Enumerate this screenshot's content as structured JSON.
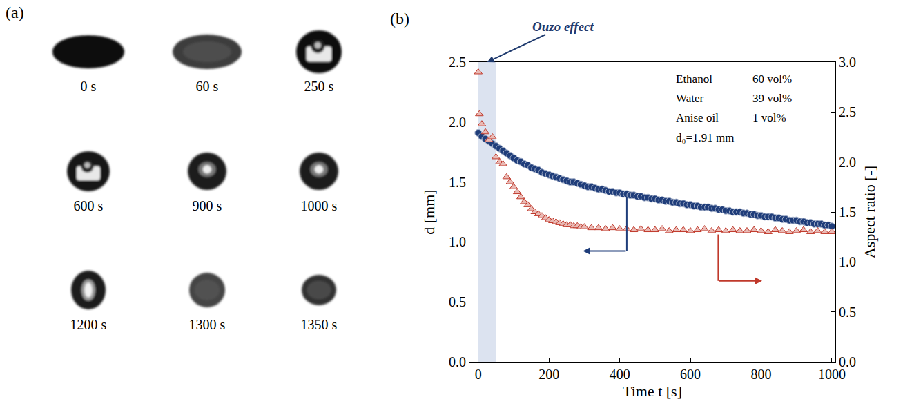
{
  "chart_data": {
    "type": "scatter",
    "panel": "(b)",
    "x_label": "Time t [s]",
    "y_label": "d [mm]",
    "y2_label": "Aspect ratio [-]",
    "xlim": [
      -25,
      1010
    ],
    "xticks": [
      0,
      200,
      400,
      600,
      800,
      1000
    ],
    "ylim": [
      0,
      2.5
    ],
    "yticks": [
      {
        "value": 0,
        "label": "0.0"
      },
      0.5,
      {
        "value": 1,
        "label": "1.0"
      },
      1.5,
      {
        "value": 2,
        "label": "2.0"
      },
      2.5
    ],
    "y2lim": [
      0,
      3
    ],
    "y2ticks": [
      {
        "value": 0,
        "label": "0.0"
      },
      0.5,
      {
        "value": 1,
        "label": "1.0"
      },
      1.5,
      {
        "value": 2,
        "label": "2.0"
      },
      2.5,
      {
        "value": 3,
        "label": "3.0"
      }
    ],
    "grid": false,
    "highlight": {
      "label": "Ouzo effect",
      "x": [
        0,
        50
      ]
    },
    "composition": [
      [
        "Ethanol",
        "60 vol%"
      ],
      [
        "Water",
        "39 vol%"
      ],
      [
        "Anise oil",
        "1 vol%"
      ]
    ],
    "note": "d₀=1.91 mm",
    "series": [
      {
        "color": "#1f3d7a",
        "marker": "circle",
        "x": [
          0,
          10,
          20,
          30,
          40,
          50,
          60,
          70,
          80,
          90,
          100,
          110,
          120,
          130,
          140,
          150,
          160,
          170,
          180,
          190,
          200,
          210,
          220,
          230,
          240,
          250,
          260,
          270,
          280,
          290,
          300,
          310,
          320,
          330,
          340,
          350,
          360,
          370,
          380,
          390,
          400,
          410,
          420,
          430,
          440,
          450,
          460,
          470,
          480,
          490,
          500,
          510,
          520,
          530,
          540,
          550,
          560,
          570,
          580,
          590,
          600,
          610,
          620,
          630,
          640,
          650,
          660,
          670,
          680,
          690,
          700,
          710,
          720,
          730,
          740,
          750,
          760,
          770,
          780,
          790,
          800,
          810,
          820,
          830,
          840,
          850,
          860,
          870,
          880,
          890,
          900,
          910,
          920,
          930,
          940,
          950,
          960,
          970,
          980,
          990,
          1000
        ],
        "values": [
          1.91,
          1.88,
          1.86,
          1.84,
          1.82,
          1.8,
          1.78,
          1.76,
          1.74,
          1.72,
          1.7,
          1.68,
          1.67,
          1.65,
          1.64,
          1.62,
          1.61,
          1.6,
          1.58,
          1.57,
          1.56,
          1.55,
          1.54,
          1.53,
          1.52,
          1.51,
          1.5,
          1.5,
          1.49,
          1.48,
          1.47,
          1.46,
          1.46,
          1.45,
          1.44,
          1.44,
          1.43,
          1.42,
          1.42,
          1.41,
          1.41,
          1.4,
          1.4,
          1.39,
          1.39,
          1.38,
          1.38,
          1.37,
          1.37,
          1.36,
          1.36,
          1.35,
          1.35,
          1.34,
          1.34,
          1.33,
          1.33,
          1.32,
          1.32,
          1.31,
          1.31,
          1.3,
          1.3,
          1.29,
          1.29,
          1.29,
          1.28,
          1.28,
          1.27,
          1.27,
          1.26,
          1.26,
          1.25,
          1.25,
          1.25,
          1.24,
          1.24,
          1.23,
          1.23,
          1.22,
          1.22,
          1.21,
          1.21,
          1.21,
          1.2,
          1.2,
          1.19,
          1.19,
          1.18,
          1.18,
          1.18,
          1.17,
          1.17,
          1.16,
          1.16,
          1.15,
          1.15,
          1.15,
          1.14,
          1.14,
          1.13
        ]
      },
      {
        "color": "#c0392b",
        "marker": "triangle-up",
        "axis": "y2",
        "x": [
          0,
          3,
          10,
          20,
          30,
          40,
          50,
          60,
          70,
          80,
          90,
          100,
          110,
          120,
          130,
          140,
          150,
          160,
          170,
          180,
          190,
          200,
          210,
          220,
          230,
          240,
          250,
          260,
          270,
          280,
          290,
          300,
          320,
          340,
          360,
          380,
          400,
          420,
          440,
          460,
          480,
          500,
          520,
          540,
          560,
          580,
          600,
          620,
          640,
          660,
          680,
          700,
          720,
          740,
          760,
          780,
          800,
          820,
          840,
          860,
          880,
          900,
          920,
          940,
          960,
          980,
          1000
        ],
        "values": [
          2.9,
          2.48,
          2.38,
          2.3,
          2.22,
          2.25,
          2.05,
          2.0,
          1.98,
          1.85,
          1.8,
          1.75,
          1.7,
          1.65,
          1.6,
          1.57,
          1.53,
          1.5,
          1.48,
          1.46,
          1.44,
          1.42,
          1.41,
          1.4,
          1.39,
          1.38,
          1.37,
          1.37,
          1.36,
          1.36,
          1.35,
          1.35,
          1.34,
          1.34,
          1.33,
          1.34,
          1.33,
          1.33,
          1.32,
          1.33,
          1.32,
          1.32,
          1.33,
          1.31,
          1.32,
          1.32,
          1.31,
          1.32,
          1.33,
          1.31,
          1.32,
          1.31,
          1.32,
          1.31,
          1.31,
          1.32,
          1.31,
          1.3,
          1.32,
          1.31,
          1.3,
          1.31,
          1.32,
          1.3,
          1.31,
          1.3,
          1.3
        ]
      }
    ]
  },
  "panel_a": {
    "label": "(a)",
    "frames": [
      "0 s",
      "60 s",
      "250 s",
      "600 s",
      "900 s",
      "1000 s",
      "1200 s",
      "1300 s",
      "1350 s"
    ]
  }
}
